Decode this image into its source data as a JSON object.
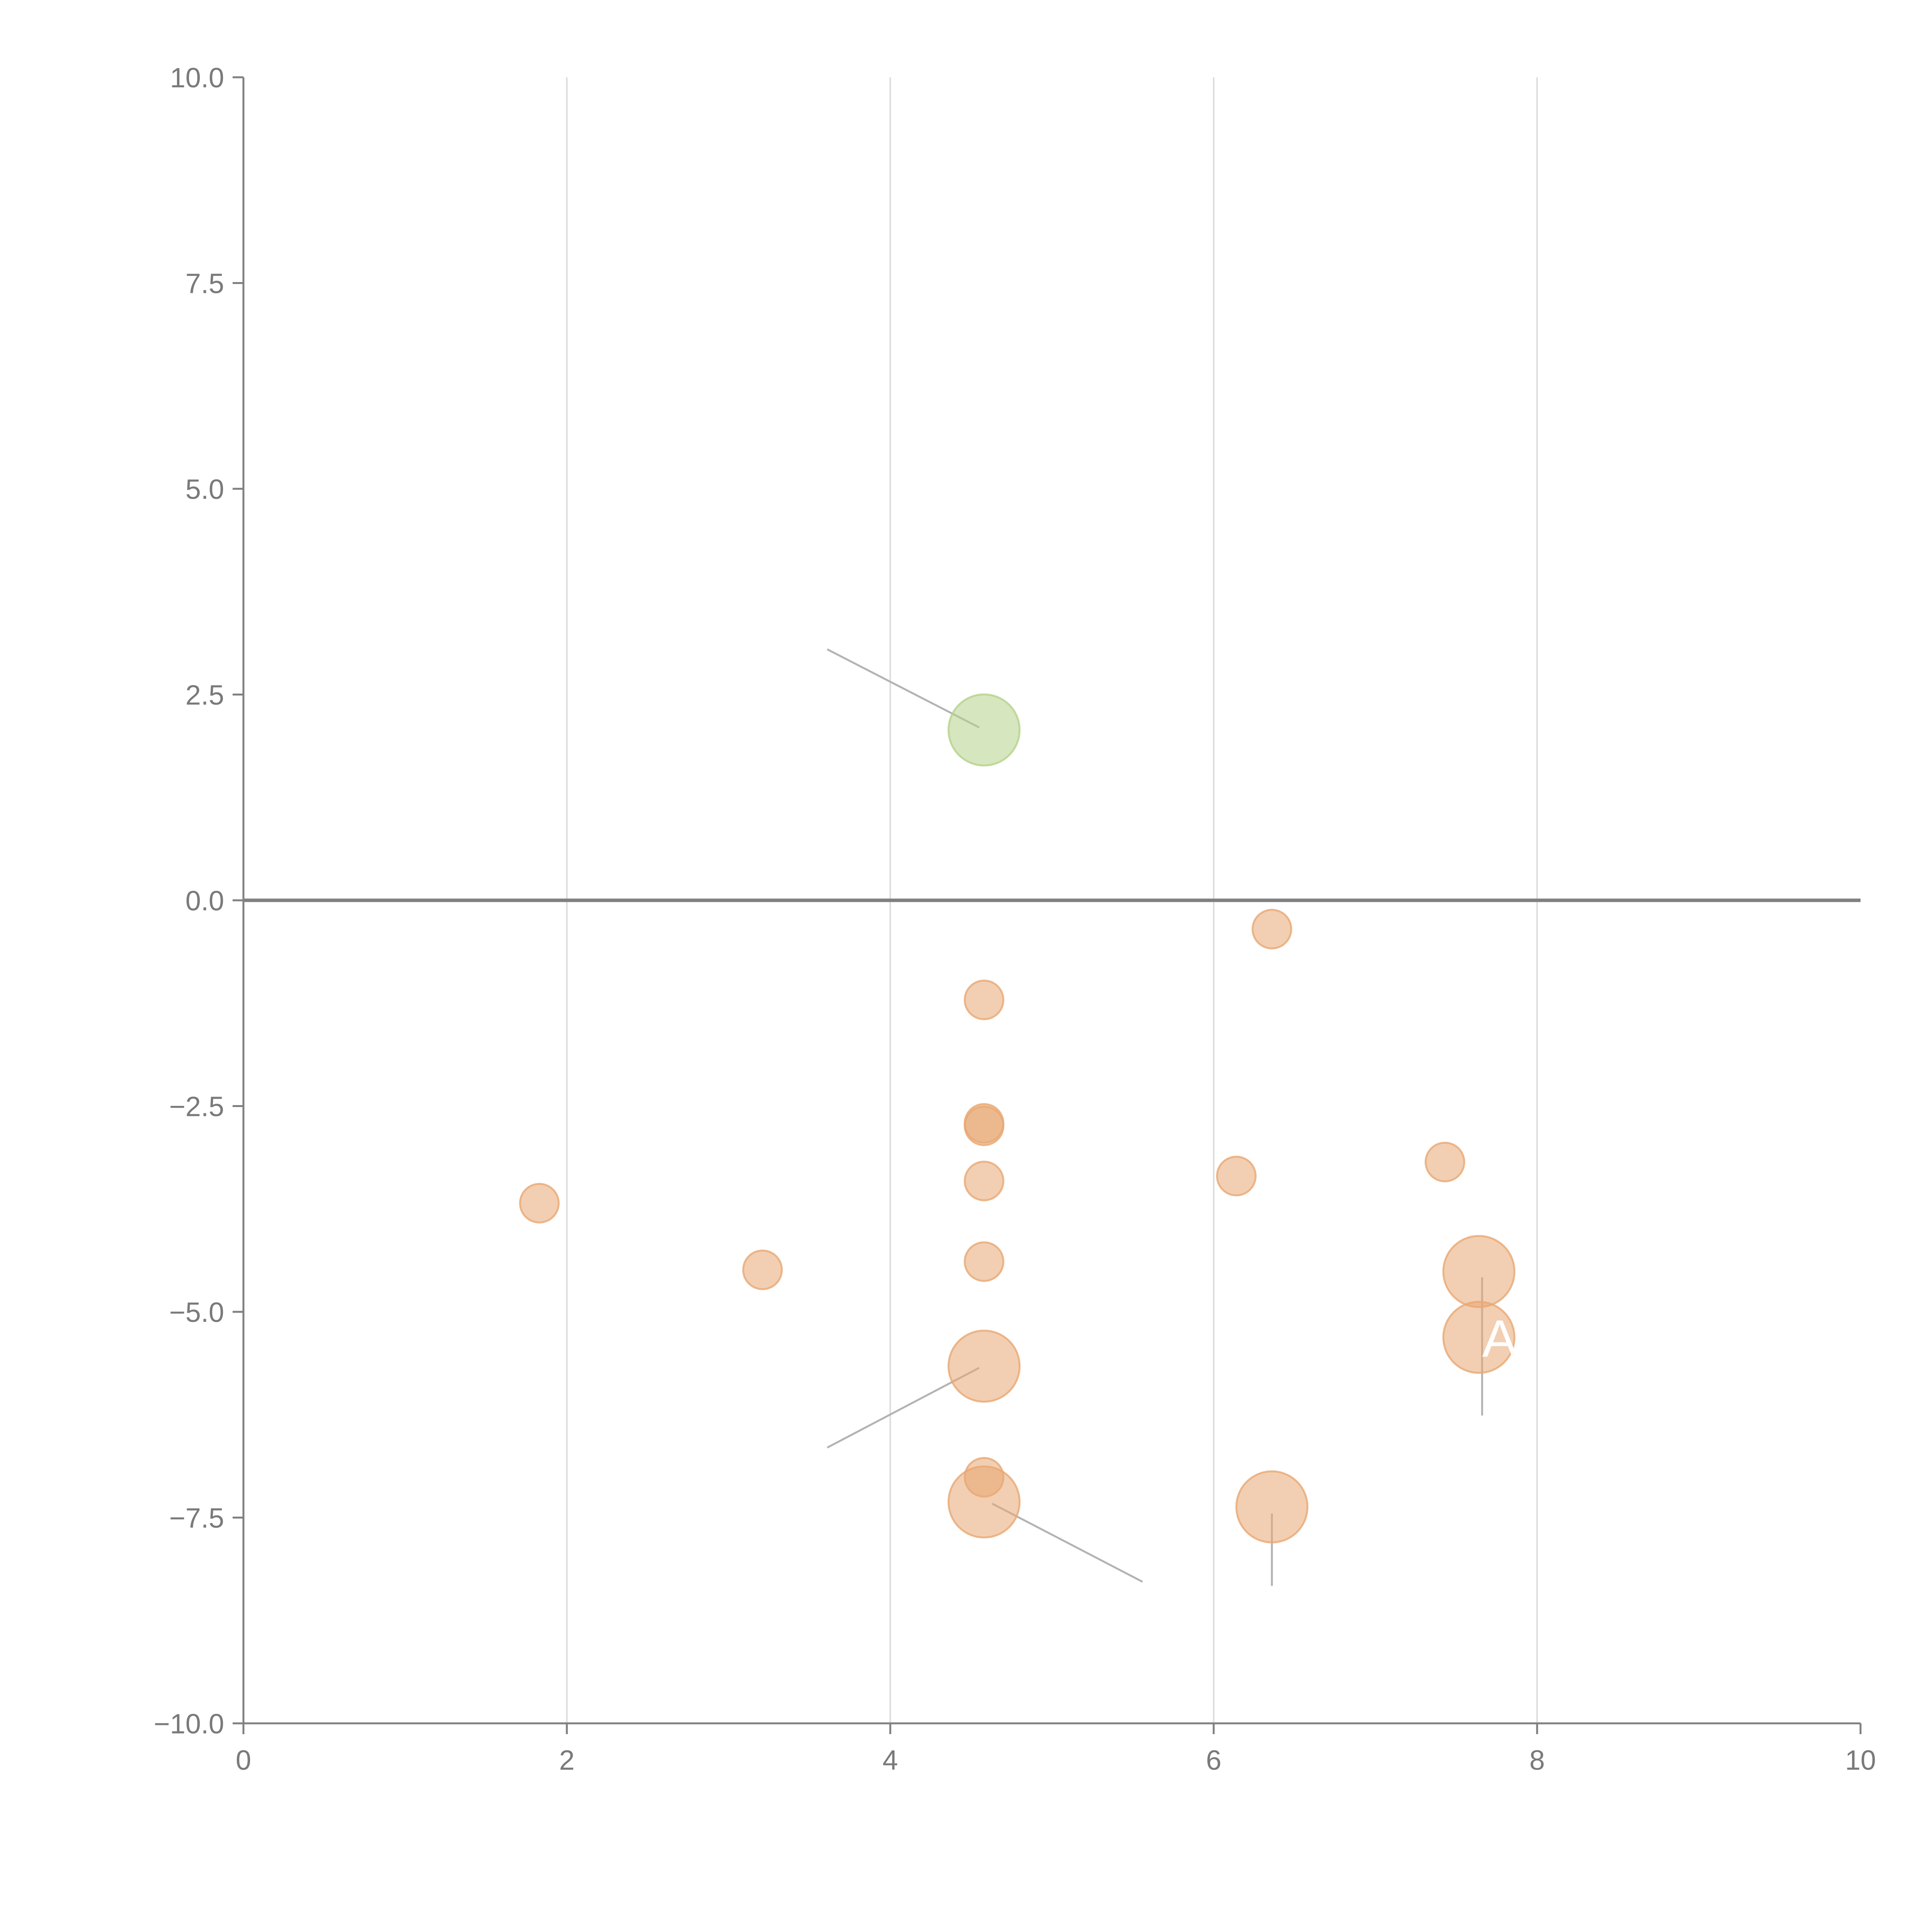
{
  "chart_data": {
    "type": "scatter",
    "title": "",
    "xlabel": "",
    "ylabel": "",
    "xlim": [
      0,
      10
    ],
    "ylim": [
      -10,
      10
    ],
    "grid": {
      "x": true,
      "y": false
    },
    "reference_line": {
      "y": 0
    },
    "x_ticks": [
      {
        "value": 0,
        "label": "0"
      },
      {
        "value": 2,
        "label": "2"
      },
      {
        "value": 4,
        "label": "4"
      },
      {
        "value": 6,
        "label": "6"
      },
      {
        "value": 8,
        "label": "8"
      },
      {
        "value": 10,
        "label": "10"
      }
    ],
    "y_ticks": [
      {
        "value": 10,
        "label": "10.0"
      },
      {
        "value": 7.5,
        "label": "7.5"
      },
      {
        "value": 5,
        "label": "5.0"
      },
      {
        "value": 2.5,
        "label": "2.5"
      },
      {
        "value": 0,
        "label": "0.0"
      },
      {
        "value": -2.5,
        "label": "−2.5"
      },
      {
        "value": -5,
        "label": "−5.0"
      },
      {
        "value": -7.5,
        "label": "−7.5"
      },
      {
        "value": -10,
        "label": "−10.0"
      }
    ],
    "colors": {
      "positive": "#b5d28a",
      "negative": "#e8a873",
      "axis": "#808080",
      "grid": "#dddddd",
      "leader": "#b3b3b3"
    },
    "points": [
      {
        "x": 4.58,
        "y": 2.07,
        "size": 3,
        "group": "positive"
      },
      {
        "x": 6.36,
        "y": -0.35,
        "size": 1,
        "group": "negative"
      },
      {
        "x": 4.58,
        "y": -1.21,
        "size": 1,
        "group": "negative"
      },
      {
        "x": 4.58,
        "y": -2.71,
        "size": 1,
        "group": "negative"
      },
      {
        "x": 4.58,
        "y": -2.74,
        "size": 1,
        "group": "negative"
      },
      {
        "x": 4.58,
        "y": -3.41,
        "size": 1,
        "group": "negative"
      },
      {
        "x": 1.83,
        "y": -3.68,
        "size": 1,
        "group": "negative"
      },
      {
        "x": 6.14,
        "y": -3.35,
        "size": 1,
        "group": "negative"
      },
      {
        "x": 7.43,
        "y": -3.18,
        "size": 1,
        "group": "negative"
      },
      {
        "x": 3.21,
        "y": -4.49,
        "size": 1,
        "group": "negative"
      },
      {
        "x": 4.58,
        "y": -4.39,
        "size": 1,
        "group": "negative"
      },
      {
        "x": 7.64,
        "y": -4.51,
        "size": 3,
        "group": "negative"
      },
      {
        "x": 7.64,
        "y": -5.31,
        "size": 3,
        "group": "negative"
      },
      {
        "x": 4.58,
        "y": -5.66,
        "size": 3,
        "group": "negative"
      },
      {
        "x": 4.58,
        "y": -7.01,
        "size": 1,
        "group": "negative"
      },
      {
        "x": 4.58,
        "y": -7.31,
        "size": 3,
        "group": "negative"
      },
      {
        "x": 6.36,
        "y": -7.37,
        "size": 3,
        "group": "negative"
      }
    ],
    "annotations": [
      {
        "text": "AI",
        "x": 7.66,
        "y": -5.31
      }
    ],
    "leader_lines": [
      {
        "x1": 4.55,
        "y1": 2.1,
        "x2": 3.61,
        "y2": 3.05
      },
      {
        "x1": 4.55,
        "y1": -5.68,
        "x2": 3.61,
        "y2": -6.65
      },
      {
        "x1": 4.63,
        "y1": -7.33,
        "x2": 5.56,
        "y2": -8.28
      },
      {
        "x1": 6.36,
        "y1": -7.45,
        "x2": 6.36,
        "y2": -8.33
      },
      {
        "x1": 7.66,
        "y1": -4.58,
        "x2": 7.66,
        "y2": -6.26
      }
    ]
  }
}
